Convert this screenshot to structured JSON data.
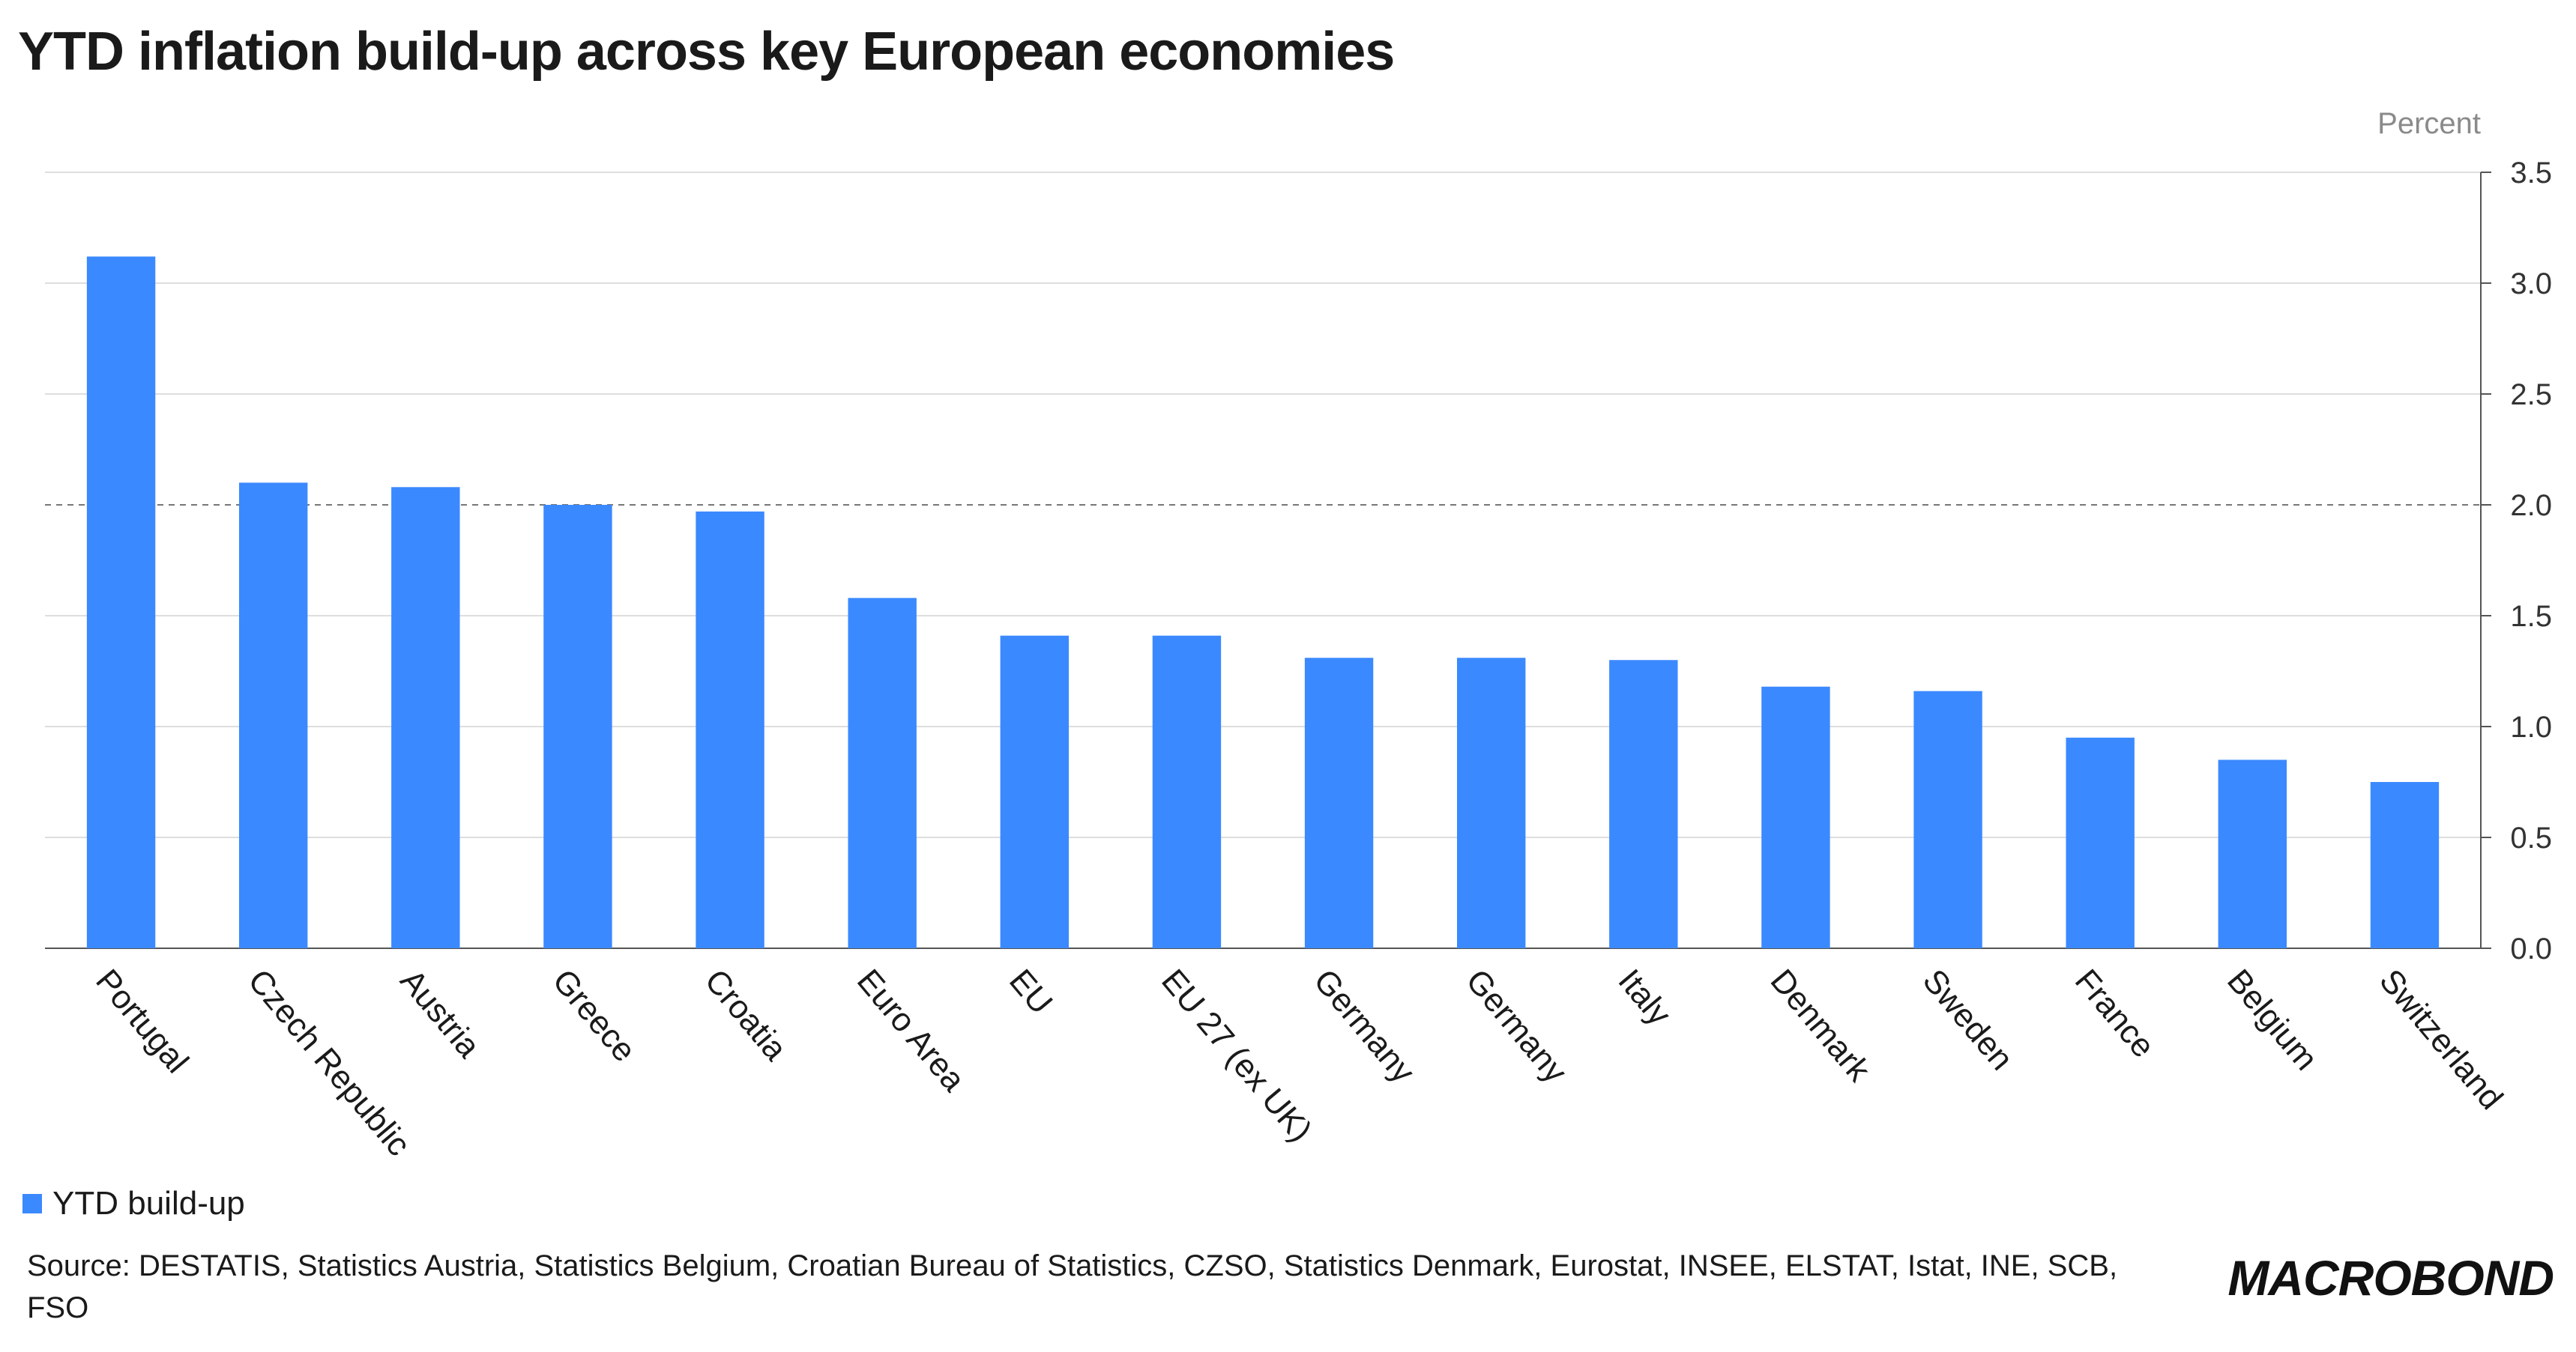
{
  "chart_data": {
    "type": "bar",
    "title": "YTD inflation build-up across key European economies",
    "unit_label": "Percent",
    "categories": [
      "Portugal",
      "Czech Republic",
      "Austria",
      "Greece",
      "Croatia",
      "Euro Area",
      "EU",
      "EU 27 (ex UK)",
      "Germany",
      "Germany",
      "Italy",
      "Denmark",
      "Sweden",
      "France",
      "Belgium",
      "Switzerland"
    ],
    "series": [
      {
        "name": "YTD build-up",
        "color": "#3b89ff",
        "values": [
          3.12,
          2.1,
          2.08,
          2.0,
          1.97,
          1.58,
          1.41,
          1.41,
          1.31,
          1.31,
          1.3,
          1.18,
          1.16,
          0.95,
          0.85,
          0.75
        ]
      }
    ],
    "yticks": [
      "0.0",
      "0.5",
      "1.0",
      "1.5",
      "2.0",
      "2.5",
      "3.0",
      "3.5"
    ],
    "ylim": [
      0,
      3.5
    ],
    "reference_line": 2.0,
    "y_axis_side": "right",
    "grid": true,
    "legend_position": "bottom-left"
  },
  "source": "Source: DESTATIS, Statistics Austria, Statistics Belgium, Croatian Bureau of Statistics, CZSO, Statistics Denmark, Eurostat, INSEE, ELSTAT, Istat, INE, SCB, FSO",
  "logo_text": "MACROBOND"
}
